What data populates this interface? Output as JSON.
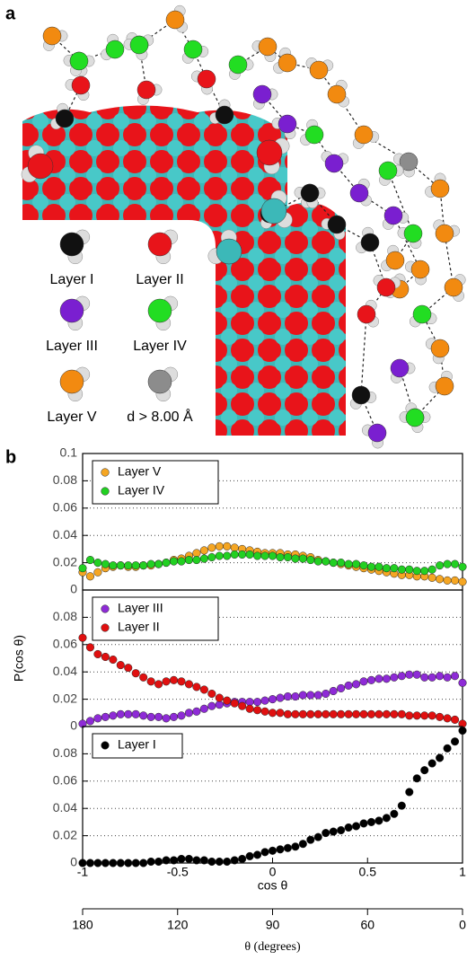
{
  "panel_a": {
    "label": "a",
    "legend": [
      "Layer I",
      "Layer II",
      "Layer III",
      "Layer IV",
      "Layer V",
      "d > 8.00 Å"
    ]
  },
  "panel_b": {
    "label": "b"
  },
  "chart_data": [
    {
      "type": "scatter",
      "legend": "upper left",
      "grid": true,
      "xlim": [
        -1,
        1
      ],
      "ylim": [
        0,
        0.1
      ],
      "yticks": [
        0,
        0.02,
        0.04,
        0.06,
        0.08,
        0.1
      ],
      "x": [
        -1,
        -0.96,
        -0.92,
        -0.88,
        -0.84,
        -0.8,
        -0.76,
        -0.72,
        -0.68,
        -0.64,
        -0.6,
        -0.56,
        -0.52,
        -0.48,
        -0.44,
        -0.4,
        -0.36,
        -0.32,
        -0.28,
        -0.24,
        -0.2,
        -0.16,
        -0.12,
        -0.08,
        -0.04,
        0,
        0.04,
        0.08,
        0.12,
        0.16,
        0.2,
        0.24,
        0.28,
        0.32,
        0.36,
        0.4,
        0.44,
        0.48,
        0.52,
        0.56,
        0.6,
        0.64,
        0.68,
        0.72,
        0.76,
        0.8,
        0.84,
        0.88,
        0.92,
        0.96,
        1
      ],
      "series": [
        {
          "name": "Layer V",
          "color": "#f5a623",
          "values": [
            0.013,
            0.01,
            0.013,
            0.016,
            0.017,
            0.018,
            0.017,
            0.017,
            0.018,
            0.018,
            0.019,
            0.02,
            0.022,
            0.023,
            0.025,
            0.027,
            0.029,
            0.031,
            0.032,
            0.032,
            0.031,
            0.03,
            0.029,
            0.028,
            0.027,
            0.027,
            0.027,
            0.026,
            0.026,
            0.025,
            0.024,
            0.022,
            0.021,
            0.02,
            0.019,
            0.018,
            0.017,
            0.016,
            0.015,
            0.014,
            0.013,
            0.012,
            0.011,
            0.011,
            0.01,
            0.01,
            0.009,
            0.008,
            0.007,
            0.007,
            0.006
          ]
        },
        {
          "name": "Layer IV",
          "color": "#22d022",
          "values": [
            0.016,
            0.022,
            0.02,
            0.019,
            0.018,
            0.018,
            0.018,
            0.018,
            0.018,
            0.019,
            0.019,
            0.02,
            0.021,
            0.021,
            0.022,
            0.022,
            0.023,
            0.024,
            0.025,
            0.025,
            0.026,
            0.026,
            0.026,
            0.025,
            0.025,
            0.025,
            0.024,
            0.024,
            0.023,
            0.023,
            0.022,
            0.021,
            0.021,
            0.02,
            0.02,
            0.019,
            0.019,
            0.018,
            0.017,
            0.017,
            0.016,
            0.016,
            0.015,
            0.015,
            0.014,
            0.014,
            0.015,
            0.018,
            0.019,
            0.019,
            0.017
          ]
        }
      ]
    },
    {
      "type": "scatter",
      "legend": "upper left",
      "grid": true,
      "xlim": [
        -1,
        1
      ],
      "ylim": [
        0,
        0.1
      ],
      "yticks": [
        0,
        0.02,
        0.04,
        0.06,
        0.08
      ],
      "ylabel": "P(cos θ)",
      "x": [
        -1,
        -0.96,
        -0.92,
        -0.88,
        -0.84,
        -0.8,
        -0.76,
        -0.72,
        -0.68,
        -0.64,
        -0.6,
        -0.56,
        -0.52,
        -0.48,
        -0.44,
        -0.4,
        -0.36,
        -0.32,
        -0.28,
        -0.24,
        -0.2,
        -0.16,
        -0.12,
        -0.08,
        -0.04,
        0,
        0.04,
        0.08,
        0.12,
        0.16,
        0.2,
        0.24,
        0.28,
        0.32,
        0.36,
        0.4,
        0.44,
        0.48,
        0.52,
        0.56,
        0.6,
        0.64,
        0.68,
        0.72,
        0.76,
        0.8,
        0.84,
        0.88,
        0.92,
        0.96,
        1
      ],
      "series": [
        {
          "name": "Layer III",
          "color": "#8e2bd6",
          "values": [
            0.002,
            0.004,
            0.006,
            0.007,
            0.008,
            0.009,
            0.009,
            0.009,
            0.008,
            0.007,
            0.007,
            0.006,
            0.007,
            0.008,
            0.01,
            0.011,
            0.013,
            0.015,
            0.016,
            0.017,
            0.018,
            0.018,
            0.018,
            0.018,
            0.019,
            0.02,
            0.021,
            0.022,
            0.022,
            0.023,
            0.023,
            0.023,
            0.024,
            0.026,
            0.028,
            0.03,
            0.031,
            0.033,
            0.034,
            0.035,
            0.035,
            0.036,
            0.037,
            0.038,
            0.038,
            0.036,
            0.036,
            0.037,
            0.036,
            0.037,
            0.032
          ]
        },
        {
          "name": "Layer II",
          "color": "#e01010",
          "values": [
            0.065,
            0.058,
            0.053,
            0.051,
            0.049,
            0.045,
            0.043,
            0.039,
            0.036,
            0.033,
            0.031,
            0.033,
            0.034,
            0.033,
            0.031,
            0.029,
            0.027,
            0.024,
            0.021,
            0.019,
            0.017,
            0.015,
            0.013,
            0.012,
            0.011,
            0.01,
            0.01,
            0.009,
            0.009,
            0.009,
            0.009,
            0.009,
            0.009,
            0.009,
            0.009,
            0.009,
            0.009,
            0.009,
            0.009,
            0.009,
            0.009,
            0.009,
            0.009,
            0.008,
            0.008,
            0.008,
            0.008,
            0.007,
            0.006,
            0.005,
            0.002
          ]
        }
      ]
    },
    {
      "type": "scatter",
      "legend": "upper left",
      "grid": true,
      "xlim": [
        -1,
        1
      ],
      "ylim": [
        0,
        0.1
      ],
      "yticks": [
        0,
        0.02,
        0.04,
        0.06,
        0.08
      ],
      "xticks": [
        -1,
        -0.5,
        0,
        0.5,
        1
      ],
      "xlabel": "cos θ",
      "theta_axis": {
        "label": "θ (degrees)",
        "scale": "cos",
        "ticks": [
          180,
          120,
          90,
          60,
          0
        ]
      },
      "x": [
        -1,
        -0.96,
        -0.92,
        -0.88,
        -0.84,
        -0.8,
        -0.76,
        -0.72,
        -0.68,
        -0.64,
        -0.6,
        -0.56,
        -0.52,
        -0.48,
        -0.44,
        -0.4,
        -0.36,
        -0.32,
        -0.28,
        -0.24,
        -0.2,
        -0.16,
        -0.12,
        -0.08,
        -0.04,
        0,
        0.04,
        0.08,
        0.12,
        0.16,
        0.2,
        0.24,
        0.28,
        0.32,
        0.36,
        0.4,
        0.44,
        0.48,
        0.52,
        0.56,
        0.6,
        0.64,
        0.68,
        0.72,
        0.76,
        0.8,
        0.84,
        0.88,
        0.92,
        0.96,
        1
      ],
      "series": [
        {
          "name": "Layer I",
          "color": "#000000",
          "values": [
            0,
            0,
            0,
            0,
            0,
            0,
            0,
            0,
            0,
            0.001,
            0.001,
            0.002,
            0.002,
            0.003,
            0.003,
            0.002,
            0.002,
            0.001,
            0.001,
            0.001,
            0.002,
            0.003,
            0.005,
            0.006,
            0.008,
            0.009,
            0.01,
            0.011,
            0.012,
            0.014,
            0.017,
            0.019,
            0.022,
            0.023,
            0.024,
            0.026,
            0.027,
            0.029,
            0.03,
            0.031,
            0.033,
            0.036,
            0.042,
            0.052,
            0.062,
            0.068,
            0.073,
            0.077,
            0.084,
            0.089,
            0.097
          ]
        }
      ]
    }
  ]
}
